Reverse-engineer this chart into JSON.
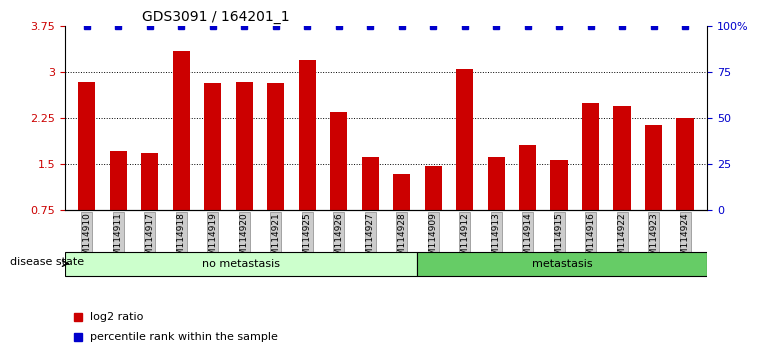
{
  "title": "GDS3091 / 164201_1",
  "samples": [
    "GSM114910",
    "GSM114911",
    "GSM114917",
    "GSM114918",
    "GSM114919",
    "GSM114920",
    "GSM114921",
    "GSM114925",
    "GSM114926",
    "GSM114927",
    "GSM114928",
    "GSM114909",
    "GSM114912",
    "GSM114913",
    "GSM114914",
    "GSM114915",
    "GSM114916",
    "GSM114922",
    "GSM114923",
    "GSM114924"
  ],
  "log2_values": [
    2.85,
    1.72,
    1.68,
    3.35,
    2.82,
    2.85,
    2.82,
    3.2,
    2.35,
    1.62,
    1.35,
    1.48,
    3.05,
    1.62,
    1.82,
    1.58,
    2.5,
    2.45,
    2.15,
    2.25
  ],
  "no_metastasis_count": 11,
  "metastasis_count": 9,
  "ymin": 0.75,
  "ymax": 3.75,
  "yticks": [
    0.75,
    1.5,
    2.25,
    3.0,
    3.75
  ],
  "ytick_labels": [
    "0.75",
    "1.5",
    "2.25",
    "3",
    "3.75"
  ],
  "right_yticks": [
    0,
    25,
    50,
    75,
    100
  ],
  "right_ytick_labels": [
    "0",
    "25",
    "50",
    "75",
    "100%"
  ],
  "bar_color": "#cc0000",
  "percentile_color": "#0000cc",
  "no_metastasis_color": "#ccffcc",
  "metastasis_color": "#66cc66",
  "label_bg_color": "#cccccc",
  "label_bg_border": "#888888",
  "legend_log2_color": "#cc0000",
  "legend_pct_color": "#0000cc",
  "disease_state_label": "disease state",
  "no_metastasis_label": "no metastasis",
  "metastasis_label": "metastasis",
  "legend_log2_label": "log2 ratio",
  "legend_pct_label": "percentile rank within the sample"
}
